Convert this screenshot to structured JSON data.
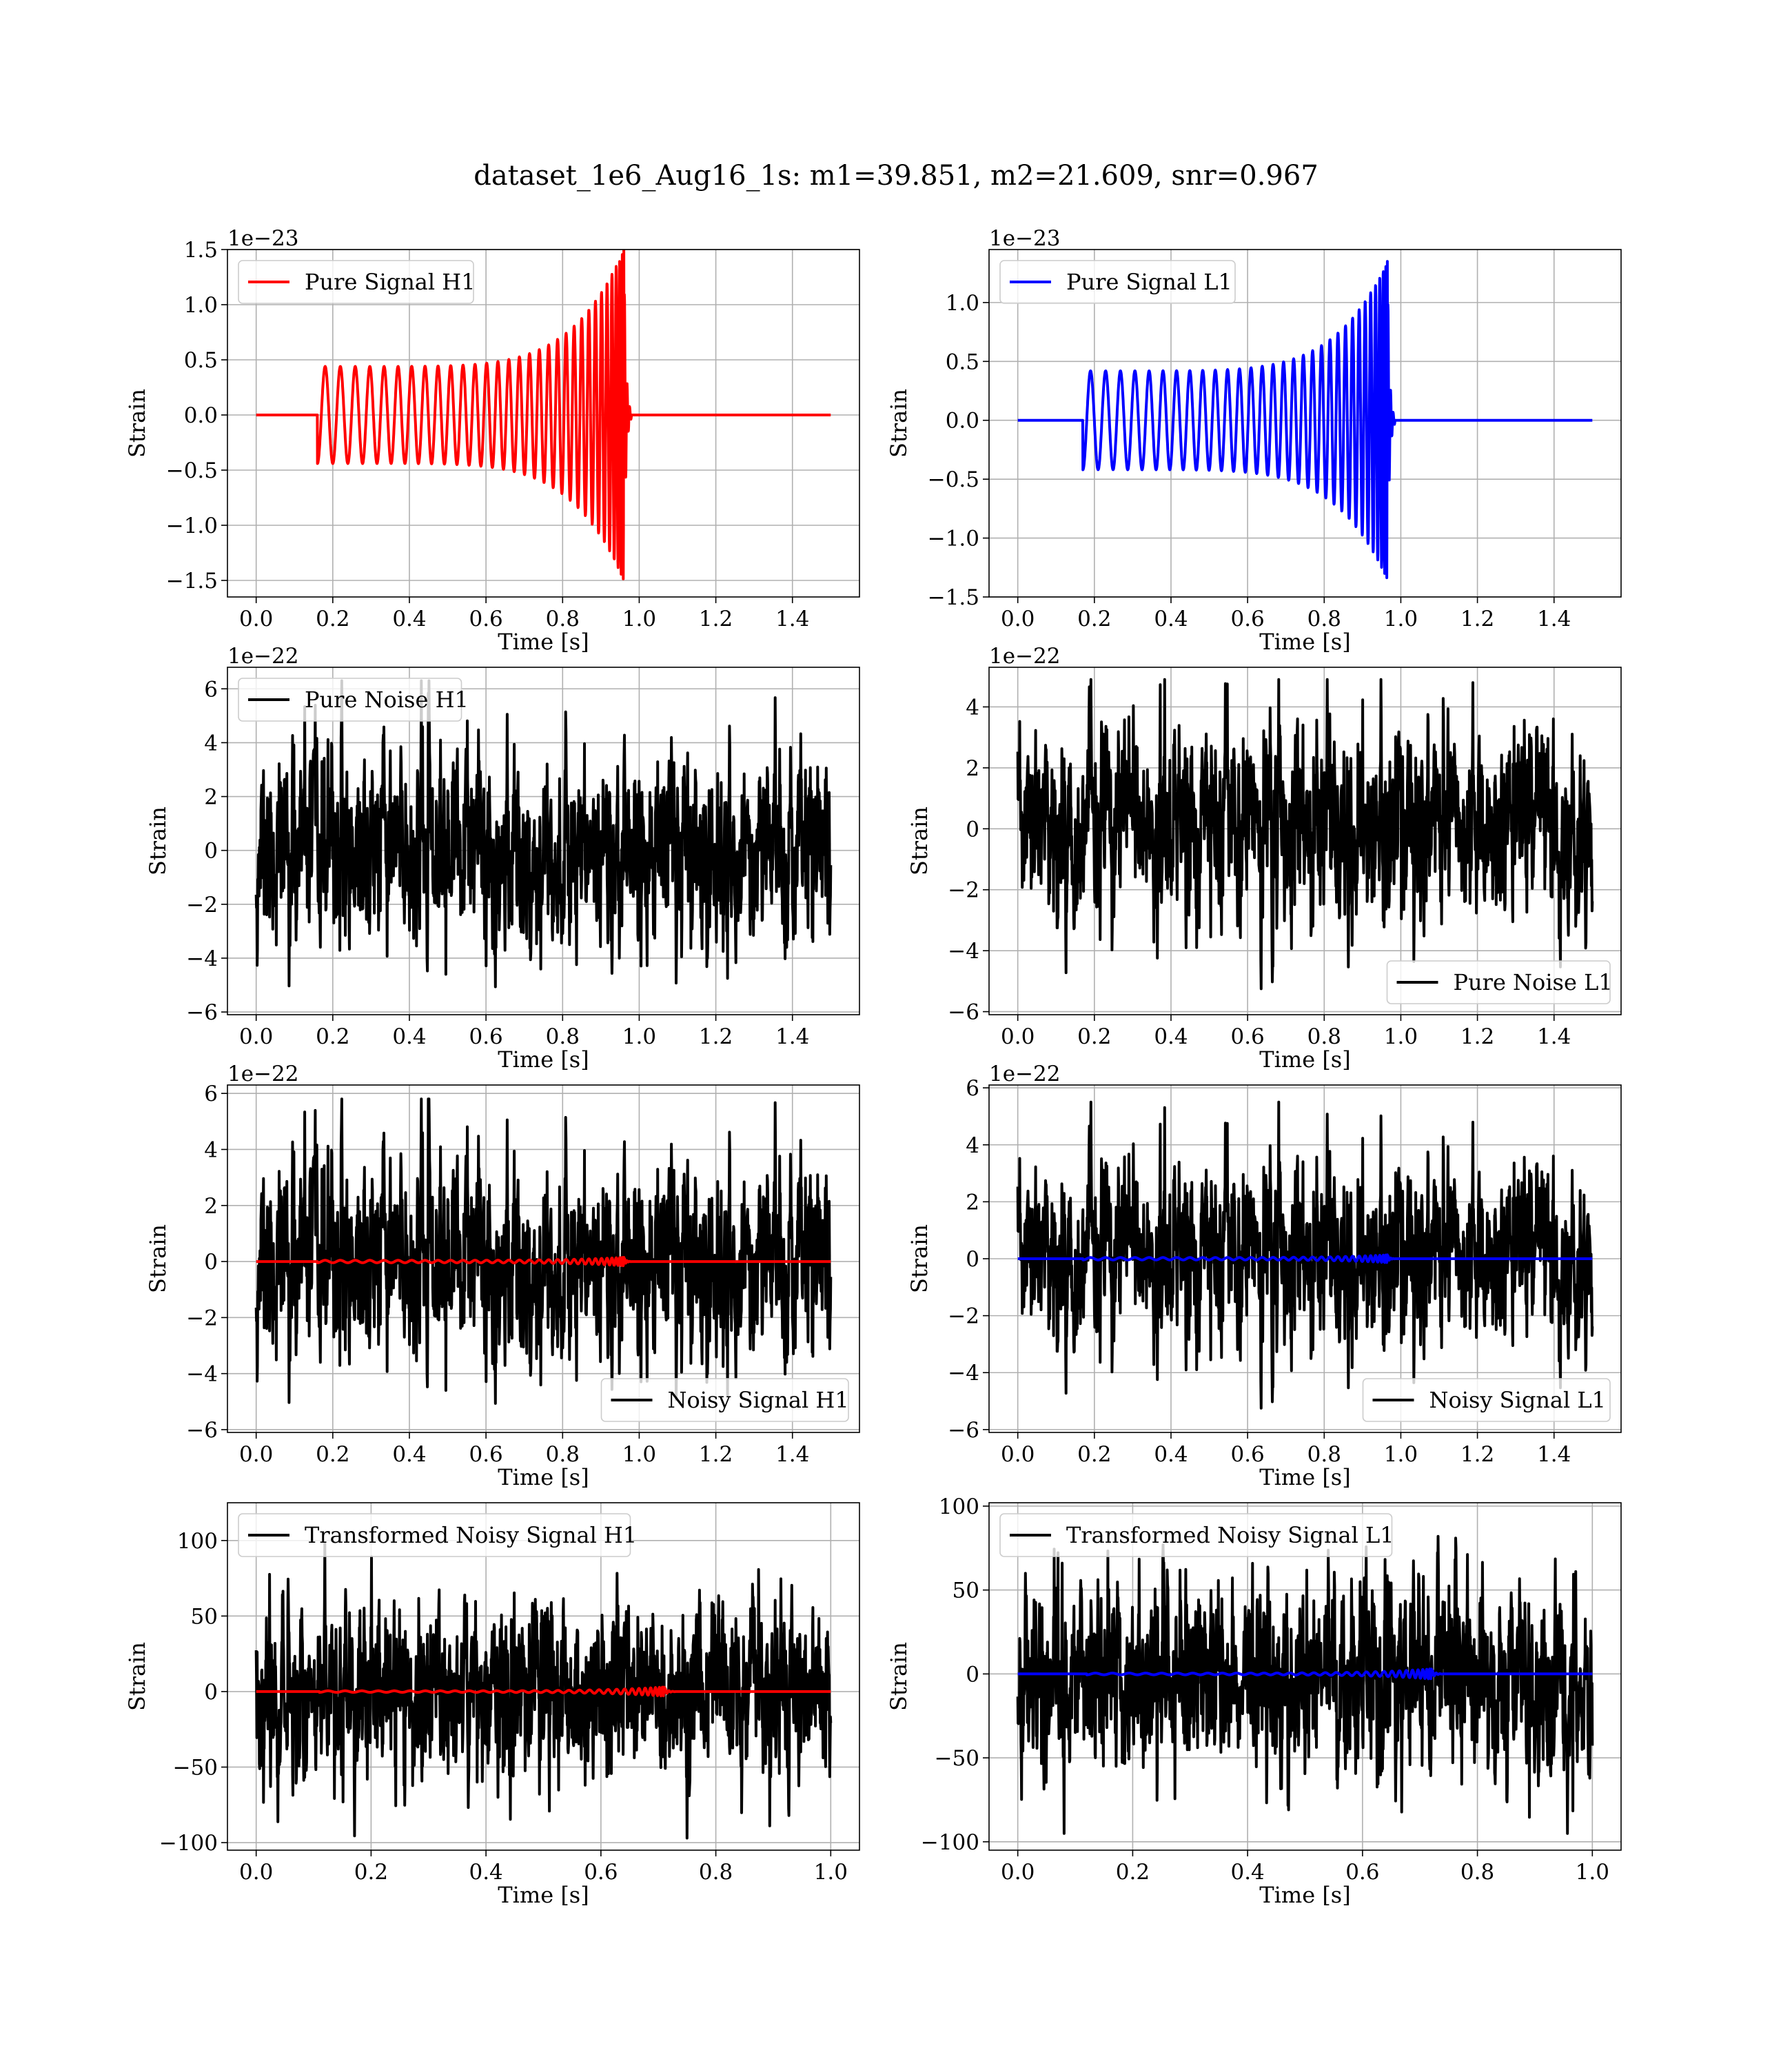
{
  "figure": {
    "suptitle": "dataset_1e6_Aug16_1s: m1=39.851, m2=21.609, snr=0.967"
  },
  "chart_data": [
    {
      "type": "line",
      "kind": "chirp",
      "legend": [
        "Pure Signal H1"
      ],
      "legend_loc": "upper-left",
      "xlabel": "Time [s]",
      "ylabel": "Strain",
      "offset_text": "1e−23",
      "xlim": [
        -0.075,
        1.575
      ],
      "ylim": [
        -1.65,
        1.5
      ],
      "xticks": [
        0.0,
        0.2,
        0.4,
        0.6,
        0.8,
        1.0,
        1.2,
        1.4
      ],
      "xtick_labels": [
        "0.0",
        "0.2",
        "0.4",
        "0.6",
        "0.8",
        "1.0",
        "1.2",
        "1.4"
      ],
      "yticks": [
        -1.5,
        -1.0,
        -0.5,
        0.0,
        0.5,
        1.0,
        1.5
      ],
      "ytick_labels": [
        "−1.5",
        "−1.0",
        "−0.5",
        "0.0",
        "0.5",
        "1.0",
        "1.5"
      ],
      "grid": true,
      "signal": {
        "t_start": 0.16,
        "t_merger": 0.96,
        "t_end": 1.5,
        "amp_start": 0.44,
        "amp_peak": 1.5,
        "cycles": 28.5,
        "color": "#ff0000"
      }
    },
    {
      "type": "line",
      "kind": "chirp",
      "legend": [
        "Pure Signal L1"
      ],
      "legend_loc": "upper-left",
      "xlabel": "Time [s]",
      "ylabel": "Strain",
      "offset_text": "1e−23",
      "xlim": [
        -0.075,
        1.575
      ],
      "ylim": [
        -1.5,
        1.45
      ],
      "xticks": [
        0.0,
        0.2,
        0.4,
        0.6,
        0.8,
        1.0,
        1.2,
        1.4
      ],
      "xtick_labels": [
        "0.0",
        "0.2",
        "0.4",
        "0.6",
        "0.8",
        "1.0",
        "1.2",
        "1.4"
      ],
      "yticks": [
        -1.5,
        -1.0,
        -0.5,
        0.0,
        0.5,
        1.0
      ],
      "ytick_labels": [
        "−1.5",
        "−1.0",
        "−0.5",
        "0.0",
        "0.5",
        "1.0"
      ],
      "grid": true,
      "signal": {
        "t_start": 0.17,
        "t_merger": 0.965,
        "t_end": 1.5,
        "amp_start": 0.42,
        "amp_peak": 1.35,
        "cycles": 28.5,
        "color": "#0000ff"
      }
    },
    {
      "type": "line",
      "kind": "noise",
      "legend": [
        "Pure Noise H1"
      ],
      "legend_loc": "upper-left",
      "xlabel": "Time [s]",
      "ylabel": "Strain",
      "offset_text": "1e−22",
      "xlim": [
        -0.075,
        1.575
      ],
      "ylim": [
        -6.1,
        6.8
      ],
      "xticks": [
        0.0,
        0.2,
        0.4,
        0.6,
        0.8,
        1.0,
        1.2,
        1.4
      ],
      "xtick_labels": [
        "0.0",
        "0.2",
        "0.4",
        "0.6",
        "0.8",
        "1.0",
        "1.2",
        "1.4"
      ],
      "yticks": [
        -6,
        -4,
        -2,
        0,
        2,
        4,
        6
      ],
      "ytick_labels": [
        "−6",
        "−4",
        "−2",
        "0",
        "2",
        "4",
        "6"
      ],
      "grid": true,
      "noise": {
        "t_end": 1.5,
        "sigma": 1.7,
        "min": -5.5,
        "max": 6.3,
        "seed": 11,
        "color": "#000000"
      }
    },
    {
      "type": "line",
      "kind": "noise",
      "legend": [
        "Pure Noise L1"
      ],
      "legend_loc": "lower-right",
      "xlabel": "Time [s]",
      "ylabel": "Strain",
      "offset_text": "1e−22",
      "xlim": [
        -0.075,
        1.575
      ],
      "ylim": [
        -6.1,
        5.3
      ],
      "xticks": [
        0.0,
        0.2,
        0.4,
        0.6,
        0.8,
        1.0,
        1.2,
        1.4
      ],
      "xtick_labels": [
        "0.0",
        "0.2",
        "0.4",
        "0.6",
        "0.8",
        "1.0",
        "1.2",
        "1.4"
      ],
      "yticks": [
        -6,
        -4,
        -2,
        0,
        2,
        4
      ],
      "ytick_labels": [
        "−6",
        "−4",
        "−2",
        "0",
        "2",
        "4"
      ],
      "grid": true,
      "noise": {
        "t_end": 1.5,
        "sigma": 1.5,
        "min": -5.6,
        "max": 4.9,
        "seed": 23,
        "color": "#000000"
      }
    },
    {
      "type": "line",
      "kind": "noisy",
      "legend": [
        "Noisy Signal H1"
      ],
      "legend_loc": "lower-right",
      "xlabel": "Time [s]",
      "ylabel": "Strain",
      "offset_text": "1e−22",
      "xlim": [
        -0.075,
        1.575
      ],
      "ylim": [
        -6.1,
        6.3
      ],
      "xticks": [
        0.0,
        0.2,
        0.4,
        0.6,
        0.8,
        1.0,
        1.2,
        1.4
      ],
      "xtick_labels": [
        "0.0",
        "0.2",
        "0.4",
        "0.6",
        "0.8",
        "1.0",
        "1.2",
        "1.4"
      ],
      "yticks": [
        -6,
        -4,
        -2,
        0,
        2,
        4,
        6
      ],
      "ytick_labels": [
        "−6",
        "−4",
        "−2",
        "0",
        "2",
        "4",
        "6"
      ],
      "grid": true,
      "noise": {
        "t_end": 1.5,
        "sigma": 1.7,
        "min": -5.6,
        "max": 5.8,
        "seed": 11,
        "color": "#000000"
      },
      "signal": {
        "t_start": 0.16,
        "t_merger": 0.96,
        "t_end": 1.5,
        "amp_start": 0.044,
        "amp_peak": 0.15,
        "cycles": 28.5,
        "color": "#ff0000"
      }
    },
    {
      "type": "line",
      "kind": "noisy",
      "legend": [
        "Noisy Signal L1"
      ],
      "legend_loc": "lower-right",
      "xlabel": "Time [s]",
      "ylabel": "Strain",
      "offset_text": "1e−22",
      "xlim": [
        -0.075,
        1.575
      ],
      "ylim": [
        -6.1,
        6.1
      ],
      "xticks": [
        0.0,
        0.2,
        0.4,
        0.6,
        0.8,
        1.0,
        1.2,
        1.4
      ],
      "xtick_labels": [
        "0.0",
        "0.2",
        "0.4",
        "0.6",
        "0.8",
        "1.0",
        "1.2",
        "1.4"
      ],
      "yticks": [
        -6,
        -4,
        -2,
        0,
        2,
        4,
        6
      ],
      "ytick_labels": [
        "−6",
        "−4",
        "−2",
        "0",
        "2",
        "4",
        "6"
      ],
      "grid": true,
      "noise": {
        "t_end": 1.5,
        "sigma": 1.5,
        "min": -5.6,
        "max": 5.5,
        "seed": 23,
        "color": "#000000"
      },
      "signal": {
        "t_start": 0.17,
        "t_merger": 0.965,
        "t_end": 1.5,
        "amp_start": 0.042,
        "amp_peak": 0.135,
        "cycles": 28.5,
        "color": "#0000ff"
      }
    },
    {
      "type": "line",
      "kind": "noisy",
      "legend": [
        "Transformed Noisy Signal H1"
      ],
      "legend_loc": "upper-left",
      "xlabel": "Time [s]",
      "ylabel": "Strain",
      "offset_text": "",
      "xlim": [
        -0.05,
        1.05
      ],
      "ylim": [
        -105,
        125
      ],
      "xticks": [
        0.0,
        0.2,
        0.4,
        0.6,
        0.8,
        1.0
      ],
      "xtick_labels": [
        "0.0",
        "0.2",
        "0.4",
        "0.6",
        "0.8",
        "1.0"
      ],
      "yticks": [
        -100,
        -50,
        0,
        50,
        100
      ],
      "ytick_labels": [
        "−100",
        "−50",
        "0",
        "50",
        "100"
      ],
      "grid": true,
      "noise": {
        "t_end": 1.0,
        "sigma": 28,
        "min": -97,
        "max": 98,
        "seed": 37,
        "color": "#000000"
      },
      "signal": {
        "t_start": 0.11,
        "t_merger": 0.71,
        "t_end": 1.0,
        "amp_start": 0.5,
        "amp_peak": 3.0,
        "cycles": 28.5,
        "color": "#ff0000"
      }
    },
    {
      "type": "line",
      "kind": "noisy",
      "legend": [
        "Transformed Noisy Signal L1"
      ],
      "legend_loc": "upper-left",
      "xlabel": "Time [s]",
      "ylabel": "Strain",
      "offset_text": "",
      "xlim": [
        -0.05,
        1.05
      ],
      "ylim": [
        -105,
        102
      ],
      "xticks": [
        0.0,
        0.2,
        0.4,
        0.6,
        0.8,
        1.0
      ],
      "xtick_labels": [
        "0.0",
        "0.2",
        "0.4",
        "0.6",
        "0.8",
        "1.0"
      ],
      "yticks": [
        -100,
        -50,
        0,
        50,
        100
      ],
      "ytick_labels": [
        "−100",
        "−50",
        "0",
        "50",
        "100"
      ],
      "grid": true,
      "noise": {
        "t_end": 1.0,
        "sigma": 28,
        "min": -95,
        "max": 100,
        "seed": 41,
        "color": "#000000"
      },
      "signal": {
        "t_start": 0.12,
        "t_merger": 0.72,
        "t_end": 1.0,
        "amp_start": 0.5,
        "amp_peak": 3.0,
        "cycles": 28.5,
        "color": "#0000ff"
      }
    }
  ]
}
